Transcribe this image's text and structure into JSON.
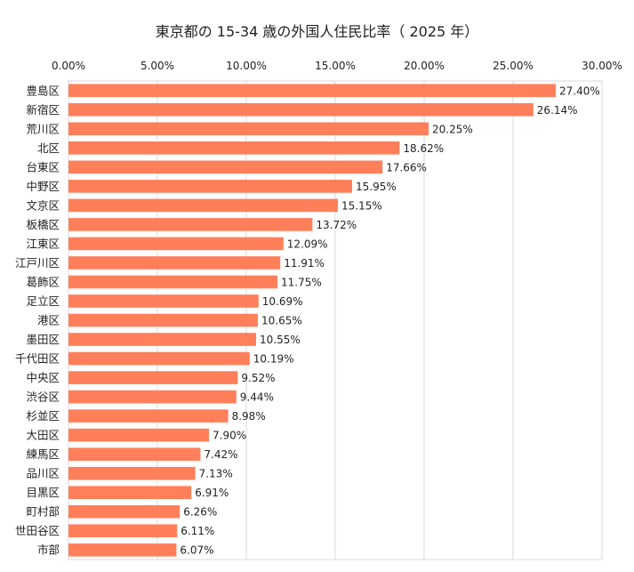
{
  "chart_data": {
    "type": "bar",
    "orientation": "horizontal",
    "title": "東京都の 15-34 歳の外国人住民比率（ 2025 年）",
    "xlabel": "",
    "ylabel": "",
    "xlim": [
      0,
      30
    ],
    "ticks": [
      "0.00%",
      "5.00%",
      "10.00%",
      "15.00%",
      "20.00%",
      "25.00%",
      "30.00%"
    ],
    "tick_values": [
      0,
      5,
      10,
      15,
      20,
      25,
      30
    ],
    "axis_position": "top",
    "grid": true,
    "bar_color": "#FF7F5B",
    "categories": [
      "豊島区",
      "新宿区",
      "荒川区",
      "北区",
      "台東区",
      "中野区",
      "文京区",
      "板橋区",
      "江東区",
      "江戸川区",
      "葛飾区",
      "足立区",
      "港区",
      "墨田区",
      "千代田区",
      "中央区",
      "渋谷区",
      "杉並区",
      "大田区",
      "練馬区",
      "品川区",
      "目黒区",
      "町村部",
      "世田谷区",
      "市部"
    ],
    "values": [
      27.4,
      26.14,
      20.25,
      18.62,
      17.66,
      15.95,
      15.15,
      13.72,
      12.09,
      11.91,
      11.75,
      10.69,
      10.65,
      10.55,
      10.19,
      9.52,
      9.44,
      8.98,
      7.9,
      7.42,
      7.13,
      6.91,
      6.26,
      6.11,
      6.07
    ],
    "value_labels": [
      "27.40%",
      "26.14%",
      "20.25%",
      "18.62%",
      "17.66%",
      "15.95%",
      "15.15%",
      "13.72%",
      "12.09%",
      "11.91%",
      "11.75%",
      "10.69%",
      "10.65%",
      "10.55%",
      "10.19%",
      "9.52%",
      "9.44%",
      "8.98%",
      "7.90%",
      "7.42%",
      "7.13%",
      "6.91%",
      "6.26%",
      "6.11%",
      "6.07%"
    ]
  }
}
